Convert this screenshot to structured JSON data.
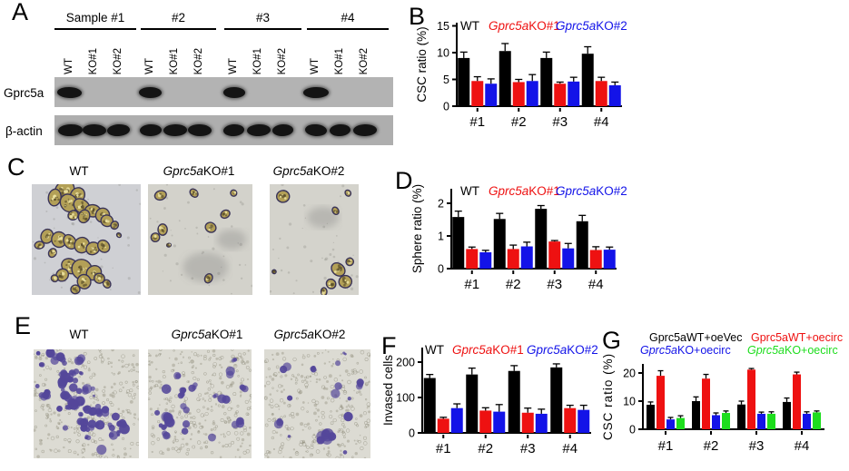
{
  "panels": {
    "a": {
      "label": "A",
      "group_headers": [
        "Sample #1",
        "#2",
        "#3",
        "#4"
      ],
      "lane_labels": [
        "WT",
        "KO#1",
        "KO#2"
      ],
      "rows": [
        {
          "label": "Gprc5a",
          "bands": [
            1,
            0,
            0,
            1,
            0,
            0,
            1,
            0,
            0,
            1,
            0,
            0
          ]
        },
        {
          "label": "β-actin",
          "bands": [
            1,
            1,
            1,
            1,
            1,
            1,
            1,
            1,
            1,
            1,
            1,
            1
          ]
        }
      ],
      "strip_color": "#b3b3b3",
      "band_color": "#141414"
    },
    "c": {
      "label": "C",
      "sphere_fill": "#b3a057",
      "sphere_edge": "#3a3458",
      "images": [
        {
          "title_italic": "",
          "title": "WT",
          "bg": "#cfd0d4",
          "blobs": [
            [
              30,
              6,
              9
            ],
            [
              42,
              10,
              7
            ],
            [
              21,
              12,
              7
            ],
            [
              34,
              17,
              8
            ],
            [
              46,
              20,
              7
            ],
            [
              56,
              24,
              6
            ],
            [
              65,
              28,
              6
            ],
            [
              48,
              29,
              6
            ],
            [
              38,
              28,
              5
            ],
            [
              69,
              33,
              5
            ],
            [
              76,
              37,
              4
            ],
            [
              14,
              47,
              6
            ],
            [
              25,
              50,
              7
            ],
            [
              35,
              52,
              6
            ],
            [
              7,
              55,
              4
            ],
            [
              46,
              55,
              7
            ],
            [
              56,
              58,
              6
            ],
            [
              66,
              56,
              5
            ],
            [
              19,
              62,
              4
            ],
            [
              80,
              46,
              2
            ],
            [
              35,
              74,
              7
            ],
            [
              46,
              77,
              8
            ],
            [
              57,
              80,
              7
            ],
            [
              28,
              82,
              5
            ],
            [
              48,
              88,
              6
            ],
            [
              62,
              85,
              5
            ],
            [
              21,
              85,
              3
            ],
            [
              69,
              90,
              4
            ],
            [
              40,
              95,
              4
            ]
          ],
          "smudges": []
        },
        {
          "title_italic": "Gprc5a",
          "title": "KO#1",
          "bg": "#d3d2cb",
          "blobs": [
            [
              12,
              10,
              5
            ],
            [
              44,
              8,
              4
            ],
            [
              82,
              8,
              3
            ],
            [
              74,
              27,
              4
            ],
            [
              60,
              39,
              5
            ],
            [
              14,
              41,
              5
            ],
            [
              7,
              48,
              4
            ],
            [
              20,
              55,
              2
            ],
            [
              58,
              85,
              4
            ]
          ],
          "smudges": [
            [
              55,
              75,
              18
            ],
            [
              80,
              50,
              12
            ]
          ]
        },
        {
          "title_italic": "Gprc5a",
          "title": "KO#2",
          "bg": "#d4d3cc",
          "blobs": [
            [
              15,
              11,
              6
            ],
            [
              88,
              8,
              3
            ],
            [
              74,
              24,
              4
            ],
            [
              5,
              79,
              2
            ],
            [
              77,
              77,
              8
            ],
            [
              85,
              88,
              7
            ],
            [
              69,
              90,
              5
            ],
            [
              61,
              97,
              4
            ],
            [
              90,
              70,
              4
            ]
          ],
          "smudges": [
            [
              60,
              30,
              15
            ]
          ]
        }
      ]
    },
    "e": {
      "label": "E",
      "bg": "#dcdbd3",
      "cell_color": "#54479a",
      "images": [
        {
          "title_italic": "",
          "title": "WT",
          "cells": 58,
          "seed": 11,
          "clustered": true,
          "extra_blobs": []
        },
        {
          "title_italic": "Gprc5a",
          "title": "KO#1",
          "cells": 16,
          "seed": 22,
          "clustered": false,
          "extra_blobs": [
            [
              22,
              62,
              6
            ],
            [
              30,
              40,
              4
            ]
          ]
        },
        {
          "title_italic": "Gprc5a",
          "title": "KO#2",
          "cells": 13,
          "seed": 33,
          "clustered": false,
          "extra_blobs": [
            [
              58,
              80,
              8
            ]
          ]
        }
      ]
    }
  },
  "chart_data": [
    {
      "panel": "B",
      "type": "bar",
      "ylabel": "CSC ratio (%)",
      "ylim": [
        0,
        15.8
      ],
      "yticks": [
        0,
        5,
        10,
        15
      ],
      "categories": [
        "#1",
        "#2",
        "#3",
        "#4"
      ],
      "grid": false,
      "legend_position": "top",
      "series": [
        {
          "name_italic": "",
          "name": "WT",
          "color": "#000000",
          "values": [
            9.0,
            10.3,
            9.0,
            9.8
          ],
          "errors": [
            1.1,
            1.4,
            1.1,
            1.3
          ]
        },
        {
          "name_italic": "Gprc5a",
          "name": "KO#1",
          "color": "#ee1111",
          "values": [
            4.7,
            4.5,
            4.2,
            4.7
          ],
          "errors": [
            0.8,
            0.5,
            0.3,
            0.7
          ]
        },
        {
          "name_italic": "Gprc5a",
          "name": "KO#2",
          "color": "#1313e8",
          "values": [
            4.2,
            4.7,
            4.6,
            3.9
          ],
          "errors": [
            0.9,
            1.2,
            0.8,
            0.6
          ]
        }
      ]
    },
    {
      "panel": "D",
      "type": "bar",
      "ylabel": "Sphere ratio (%)",
      "ylim": [
        0,
        2.45
      ],
      "yticks": [
        0,
        1,
        2
      ],
      "categories": [
        "#1",
        "#2",
        "#3",
        "#4"
      ],
      "grid": false,
      "legend_position": "top",
      "series": [
        {
          "name_italic": "",
          "name": "WT",
          "color": "#000000",
          "values": [
            1.58,
            1.52,
            1.83,
            1.45
          ],
          "errors": [
            0.18,
            0.17,
            0.1,
            0.18
          ]
        },
        {
          "name_italic": "Gprc5a",
          "name": "KO#1",
          "color": "#ee1111",
          "values": [
            0.6,
            0.6,
            0.83,
            0.57
          ],
          "errors": [
            0.06,
            0.12,
            0.03,
            0.1
          ]
        },
        {
          "name_italic": "Gprc5a",
          "name": "KO#2",
          "color": "#1313e8",
          "values": [
            0.5,
            0.68,
            0.62,
            0.58
          ],
          "errors": [
            0.06,
            0.13,
            0.15,
            0.08
          ]
        }
      ]
    },
    {
      "panel": "F",
      "type": "bar",
      "ylabel": "Invased cells",
      "ylim": [
        0,
        240
      ],
      "yticks": [
        0,
        100,
        200
      ],
      "categories": [
        "#1",
        "#2",
        "#3",
        "#4"
      ],
      "grid": false,
      "legend_position": "top",
      "series": [
        {
          "name_italic": "",
          "name": "WT",
          "color": "#000000",
          "values": [
            155,
            165,
            175,
            185
          ],
          "errors": [
            10,
            18,
            15,
            10
          ]
        },
        {
          "name_italic": "Gprc5a",
          "name": "KO#1",
          "color": "#ee1111",
          "values": [
            40,
            63,
            57,
            70
          ],
          "errors": [
            4,
            8,
            13,
            8
          ]
        },
        {
          "name_italic": "Gprc5a",
          "name": "KO#2",
          "color": "#1313e8",
          "values": [
            70,
            60,
            54,
            65
          ],
          "errors": [
            12,
            20,
            13,
            13
          ]
        }
      ]
    },
    {
      "panel": "G",
      "type": "bar",
      "ylabel": "CSC ratio (%)",
      "ylim": [
        0,
        23
      ],
      "yticks": [
        0,
        10,
        20
      ],
      "categories": [
        "#1",
        "#2",
        "#3",
        "#4"
      ],
      "grid": false,
      "legend_position": "top",
      "series": [
        {
          "name_italic": "",
          "name": "Gprc5aWT+oeVec",
          "color": "#000000",
          "values": [
            8.7,
            10.0,
            8.8,
            9.7
          ],
          "errors": [
            1.0,
            1.5,
            1.2,
            1.4
          ]
        },
        {
          "name_italic": "",
          "name": "Gprc5aWT+oecirc",
          "color": "#ee1111",
          "values": [
            19.0,
            18.0,
            21.2,
            19.5
          ],
          "errors": [
            1.8,
            1.5,
            0.4,
            0.8
          ]
        },
        {
          "name_italic": "Gprc5a",
          "name": "KO+oecirc",
          "color": "#1313e8",
          "values": [
            3.5,
            5.0,
            5.5,
            5.5
          ],
          "errors": [
            0.7,
            0.8,
            0.6,
            0.7
          ]
        },
        {
          "name_italic": "Gprc5a",
          "name": "KO+oecirc",
          "color": "#1ddd1d",
          "values": [
            4.0,
            5.8,
            5.5,
            6.0
          ],
          "errors": [
            0.8,
            0.7,
            0.7,
            0.5
          ]
        }
      ]
    }
  ]
}
